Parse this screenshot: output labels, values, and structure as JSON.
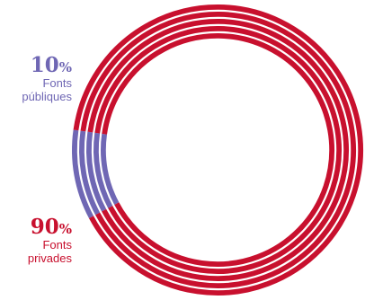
{
  "chart_data": {
    "type": "pie",
    "style": "concentric-ring-donut",
    "rings": 5,
    "start": "bottom-left",
    "slices": [
      {
        "label_lines": [
          "Fonts",
          "públiques"
        ],
        "value": 10,
        "percent_text": "10",
        "percent_sign": "%",
        "color": "#6f67b4"
      },
      {
        "label_lines": [
          "Fonts",
          "privades"
        ],
        "value": 90,
        "percent_text": "90",
        "percent_sign": "%",
        "color": "#c8102e"
      }
    ],
    "title": ""
  }
}
